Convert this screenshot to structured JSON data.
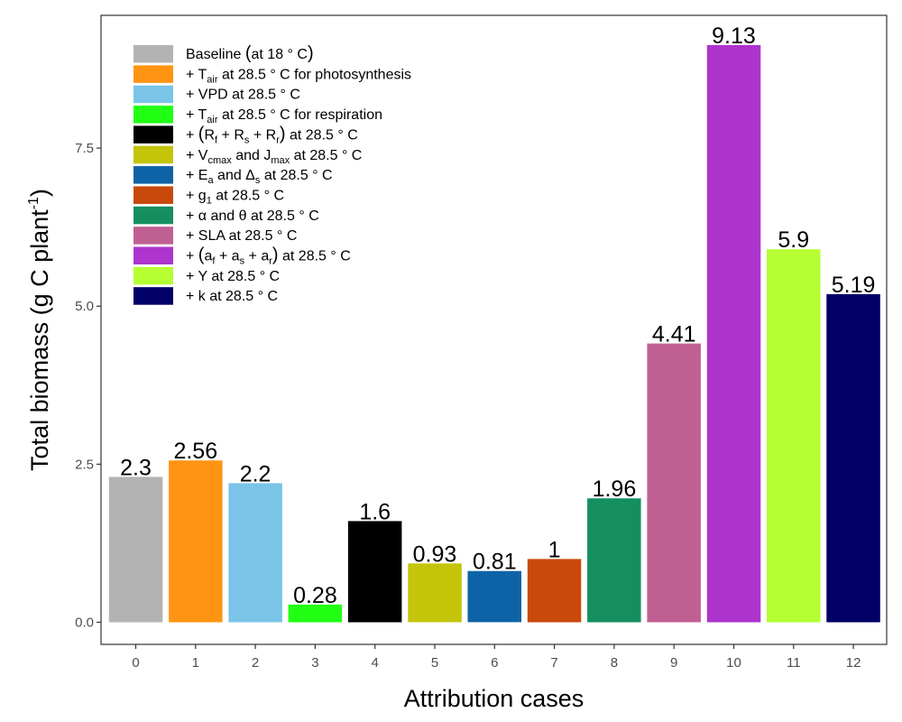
{
  "chart_data": {
    "type": "bar",
    "xlabel": "Attribution cases",
    "ylabel": "Total biomass (g C plant",
    "ylabel_superscript": "-1",
    "ylabel_close": ")",
    "ylim": [
      -0.35,
      9.6
    ],
    "yticks": [
      0.0,
      2.5,
      5.0,
      7.5
    ],
    "ytick_labels": [
      "0.0",
      "2.5",
      "5.0",
      "7.5"
    ],
    "grid": false,
    "legend_position": "top-left",
    "categories": [
      "0",
      "1",
      "2",
      "3",
      "4",
      "5",
      "6",
      "7",
      "8",
      "9",
      "10",
      "11",
      "12"
    ],
    "values": [
      2.3,
      2.56,
      2.2,
      0.28,
      1.6,
      0.93,
      0.81,
      1.0,
      1.96,
      4.41,
      9.13,
      5.9,
      5.19
    ],
    "value_labels": [
      "2.3",
      "2.56",
      "2.2",
      "0.28",
      "1.6",
      "0.93",
      "0.81",
      "1",
      "1.96",
      "4.41",
      "9.13",
      "5.9",
      "5.19"
    ],
    "colors": [
      "#b3b3b3",
      "#ff9412",
      "#7ac4e8",
      "#21ff14",
      "#000000",
      "#c4c40a",
      "#0d63a5",
      "#c9490a",
      "#168f60",
      "#c06092",
      "#ad34cd",
      "#b5ff33",
      "#000066"
    ],
    "legend": [
      {
        "segments": [
          {
            "t": "Baseline "
          },
          {
            "t": "(",
            "paren": true
          },
          {
            "t": "at 18 ° C"
          },
          {
            "t": ")",
            "paren": true
          }
        ]
      },
      {
        "segments": [
          {
            "t": "+ T"
          },
          {
            "t": "air",
            "sub": true
          },
          {
            "t": " at 28.5 ° C for photosynthesis"
          }
        ]
      },
      {
        "segments": [
          {
            "t": "+ VPD at 28.5 ° C"
          }
        ]
      },
      {
        "segments": [
          {
            "t": "+ T"
          },
          {
            "t": "air",
            "sub": true
          },
          {
            "t": " at 28.5 ° C for respiration"
          }
        ]
      },
      {
        "segments": [
          {
            "t": "+ "
          },
          {
            "t": "(",
            "paren": true
          },
          {
            "t": "R"
          },
          {
            "t": "f",
            "sub": true
          },
          {
            "t": " + R"
          },
          {
            "t": "s",
            "sub": true
          },
          {
            "t": " + R"
          },
          {
            "t": "r",
            "sub": true
          },
          {
            "t": ")",
            "paren": true
          },
          {
            "t": " at 28.5 ° C"
          }
        ]
      },
      {
        "segments": [
          {
            "t": "+ V"
          },
          {
            "t": "cmax",
            "sub": true
          },
          {
            "t": " and J"
          },
          {
            "t": "max",
            "sub": true
          },
          {
            "t": " at 28.5 ° C"
          }
        ]
      },
      {
        "segments": [
          {
            "t": "+ E"
          },
          {
            "t": "a",
            "sub": true
          },
          {
            "t": " and Δ"
          },
          {
            "t": "s",
            "sub": true
          },
          {
            "t": " at 28.5 ° C"
          }
        ]
      },
      {
        "segments": [
          {
            "t": "+ g"
          },
          {
            "t": "1",
            "sub": true
          },
          {
            "t": " at 28.5 ° C"
          }
        ]
      },
      {
        "segments": [
          {
            "t": "+ α and θ at 28.5 ° C"
          }
        ]
      },
      {
        "segments": [
          {
            "t": "+ SLA at 28.5 ° C"
          }
        ]
      },
      {
        "segments": [
          {
            "t": "+ "
          },
          {
            "t": "(",
            "paren": true
          },
          {
            "t": "a"
          },
          {
            "t": "f",
            "sub": true
          },
          {
            "t": " + a"
          },
          {
            "t": "s",
            "sub": true
          },
          {
            "t": " + a"
          },
          {
            "t": "r",
            "sub": true
          },
          {
            "t": ")",
            "paren": true
          },
          {
            "t": " at 28.5 ° C"
          }
        ]
      },
      {
        "segments": [
          {
            "t": "+ Y at 28.5 ° C"
          }
        ]
      },
      {
        "segments": [
          {
            "t": "+ k at 28.5 ° C"
          }
        ]
      }
    ]
  }
}
